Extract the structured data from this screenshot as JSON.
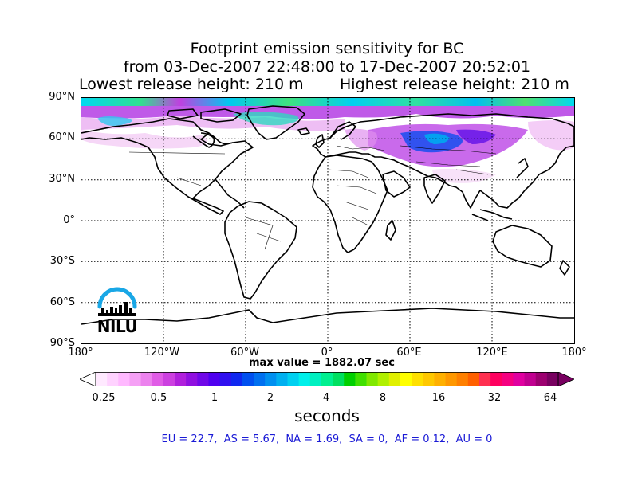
{
  "title": {
    "line1": "Footprint emission sensitivity for BC",
    "line2": "from 03-Dec-2007 22:48:00 to 17-Dec-2007 20:52:01",
    "lowest": "Lowest release height: 210 m",
    "highest": "Highest release height: 210 m"
  },
  "map": {
    "projection": "cylindrical equidistant",
    "lat_ticks": [
      "90°N",
      "60°N",
      "30°N",
      "0°",
      "30°S",
      "60°S",
      "90°S"
    ],
    "lon_ticks": [
      "180°",
      "120°W",
      "60°W",
      "0°",
      "60°E",
      "120°E",
      "180°"
    ],
    "gridlines": "dotted",
    "sensitivity_regions": [
      {
        "area": "Arctic band 78°N–90°N",
        "level": "high (cyan/green/purple)"
      },
      {
        "area": "Europe / Western Russia",
        "level": "very high (blue/purple)"
      },
      {
        "area": "North America high latitudes",
        "level": "low (pink)"
      }
    ]
  },
  "max_value": "max value = 1882.07 sec",
  "colorbar": {
    "ticks": [
      "0.25",
      "0.5",
      "1",
      "2",
      "4",
      "8",
      "16",
      "32",
      "64"
    ],
    "label": "seconds",
    "colors": [
      "#ffe9ff",
      "#ffd2ff",
      "#ffb9ff",
      "#f5a0f5",
      "#ec82ee",
      "#e05ce6",
      "#cc40e0",
      "#b020dc",
      "#9010e0",
      "#7008e8",
      "#5000f0",
      "#3010f0",
      "#1028f0",
      "#0050f0",
      "#0070f0",
      "#0090f0",
      "#00b0f0",
      "#00d0f0",
      "#00f0ea",
      "#00f0c0",
      "#00f090",
      "#00e060",
      "#00d000",
      "#40e000",
      "#80e800",
      "#b0f000",
      "#e0f000",
      "#ffff00",
      "#ffe000",
      "#ffc800",
      "#ffb000",
      "#ff9800",
      "#ff8000",
      "#ff6000",
      "#ff3050",
      "#ff0060",
      "#f50080",
      "#e000a0",
      "#c00090",
      "#9c0070",
      "#780060"
    ]
  },
  "region_summary": "EU = 22.7,  AS = 5.67,  NA = 1.69,  SA = 0,  AF = 0.12,  AU = 0",
  "logo": {
    "text": "NILU",
    "arc_color": "#19a7e6"
  }
}
